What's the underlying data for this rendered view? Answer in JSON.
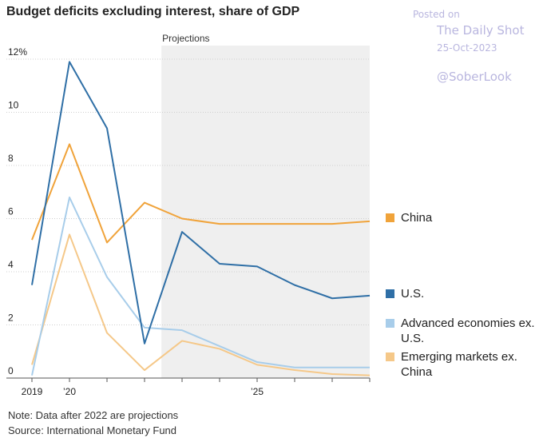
{
  "header": {
    "title": "Budget deficits excluding interest, share of GDP"
  },
  "watermark": {
    "posted": "Posted on",
    "site": "The Daily Shot",
    "date": "25-Oct-2023",
    "handle": "@SoberLook"
  },
  "notes": {
    "note": "Note: Data after 2022 are projections",
    "source": "Source: International Monetary Fund"
  },
  "chart_data": {
    "type": "line",
    "title": "Budget deficits excluding interest, share of GDP",
    "xlabel": "",
    "ylabel": "",
    "x": [
      2019,
      2020,
      2021,
      2022,
      2023,
      2024,
      2025,
      2026,
      2027,
      2028
    ],
    "xlim": [
      2019,
      2028
    ],
    "ylim": [
      0,
      12
    ],
    "x_ticks": [
      {
        "value": 2019,
        "label": "2019"
      },
      {
        "value": 2020,
        "label": "’20"
      },
      {
        "value": 2025,
        "label": "’25"
      }
    ],
    "y_ticks": [
      {
        "value": 12,
        "label": "12%"
      },
      {
        "value": 10,
        "label": "10"
      },
      {
        "value": 8,
        "label": "8"
      },
      {
        "value": 6,
        "label": "6"
      },
      {
        "value": 4,
        "label": "4"
      },
      {
        "value": 2,
        "label": "2"
      },
      {
        "value": 0,
        "label": "0"
      }
    ],
    "grid": "horizontal",
    "legend_position": "right",
    "projection": {
      "label": "Projections",
      "start": 2022.45,
      "end": 2028
    },
    "series": [
      {
        "name": "China",
        "color": "#f0a33a",
        "values": [
          5.2,
          8.8,
          5.1,
          6.6,
          6.0,
          5.8,
          5.8,
          5.8,
          5.8,
          5.9
        ]
      },
      {
        "name": "U.S.",
        "color": "#2f6fa6",
        "values": [
          3.5,
          11.9,
          9.4,
          1.3,
          5.5,
          4.3,
          4.2,
          3.5,
          3.0,
          3.1
        ]
      },
      {
        "name": "Advanced economies ex. U.S.",
        "color": "#a8cdea",
        "values": [
          0.1,
          6.8,
          3.8,
          1.9,
          1.8,
          1.2,
          0.6,
          0.4,
          0.4,
          0.4
        ]
      },
      {
        "name": "Emerging markets ex. China",
        "color": "#f5c889",
        "values": [
          0.5,
          5.4,
          1.7,
          0.3,
          1.4,
          1.1,
          0.5,
          0.3,
          0.15,
          0.1
        ]
      }
    ]
  }
}
